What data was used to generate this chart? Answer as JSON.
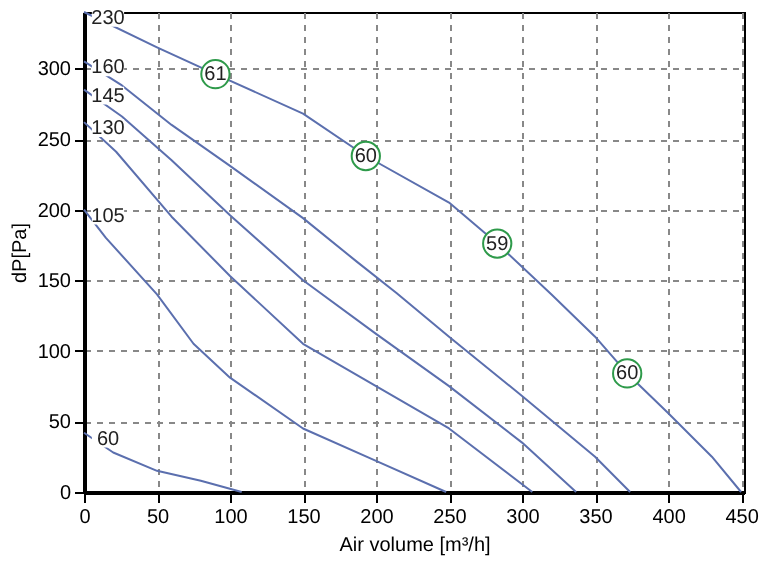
{
  "chart_data": {
    "type": "line",
    "xlabel": "Air volume [m³/h]",
    "ylabel": "dP[Pa]",
    "xlim": [
      0,
      452
    ],
    "ylim": [
      0,
      340
    ],
    "xticks": [
      0,
      50,
      100,
      150,
      200,
      250,
      300,
      350,
      400,
      450
    ],
    "yticks": [
      0,
      50,
      100,
      150,
      200,
      250,
      300
    ],
    "grid": true,
    "legend": false,
    "marker": "none",
    "line_style": "solid",
    "series": [
      {
        "name": "230",
        "color": "#5b6fae",
        "x": [
          0,
          50,
          90,
          150,
          193,
          250,
          283,
          320,
          350,
          372,
          400,
          430,
          450
        ],
        "values": [
          340,
          315,
          296,
          268,
          238,
          205,
          176,
          140,
          110,
          84,
          56,
          25,
          0
        ]
      },
      {
        "name": "160",
        "color": "#5b6fae",
        "x": [
          0,
          26,
          60,
          100,
          150,
          187,
          214,
          250,
          300,
          350,
          374
        ],
        "values": [
          305,
          288,
          260,
          231,
          194,
          163,
          141,
          110,
          68,
          25,
          0
        ]
      },
      {
        "name": "145",
        "color": "#5b6fae",
        "x": [
          0,
          26,
          60,
          100,
          150,
          200,
          250,
          300,
          337
        ],
        "values": [
          285,
          266,
          235,
          196,
          150,
          112,
          75,
          35,
          0
        ]
      },
      {
        "name": "130",
        "color": "#5b6fae",
        "x": [
          0,
          22,
          60,
          100,
          150,
          200,
          250,
          307
        ],
        "values": [
          262,
          241,
          195,
          153,
          105,
          75,
          45,
          0
        ]
      },
      {
        "name": "105",
        "color": "#5b6fae",
        "x": [
          0,
          15,
          50,
          75,
          100,
          150,
          200,
          248
        ],
        "values": [
          200,
          180,
          140,
          105,
          81,
          45,
          22,
          0
        ]
      },
      {
        "name": "60",
        "color": "#5b6fae",
        "x": [
          0,
          20,
          50,
          80,
          108
        ],
        "values": [
          42,
          28,
          15,
          8,
          0
        ]
      }
    ],
    "annotations": [
      {
        "text": "61",
        "x": 90,
        "y": 296
      },
      {
        "text": "60",
        "x": 193,
        "y": 238
      },
      {
        "text": "59",
        "x": 283,
        "y": 176
      },
      {
        "text": "60",
        "x": 372,
        "y": 84
      }
    ]
  }
}
